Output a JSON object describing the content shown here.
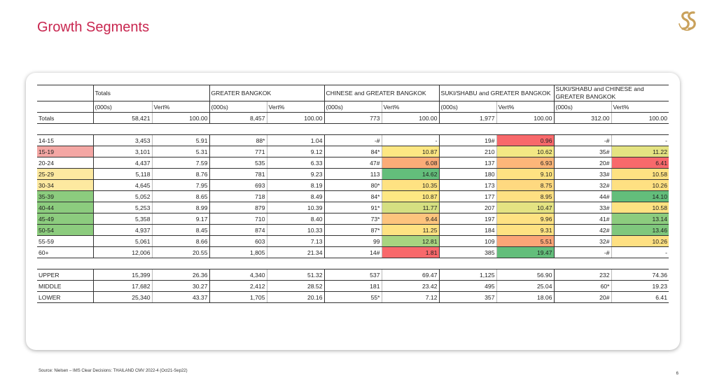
{
  "header": {
    "title": "Growth Segments"
  },
  "colors": {
    "title": "#c8264f",
    "logo": "#c9a15b"
  },
  "table": {
    "groups": [
      "Totals",
      "GREATER BANGKOK",
      "CHINESE and GREATER BANGKOK",
      "SUKI/SHABU and GREATER BANGKOK",
      "SUKI/SHABU and CHINESE and GREATER BANGKOK"
    ],
    "sub_headers": [
      "(000s)",
      "Vert%"
    ],
    "sections": [
      {
        "rows": [
          {
            "label": "Totals",
            "label_bg": "",
            "cells": [
              {
                "v": "58,421"
              },
              {
                "v": "100.00"
              },
              {
                "v": "8,457"
              },
              {
                "v": "100.00"
              },
              {
                "v": "773"
              },
              {
                "v": "100.00"
              },
              {
                "v": "1,977"
              },
              {
                "v": "100.00"
              },
              {
                "v": "312.00"
              },
              {
                "v": "100.00"
              }
            ]
          }
        ]
      },
      {
        "rows": [
          {
            "label": "14-15",
            "label_bg": "",
            "cells": [
              {
                "v": "3,453"
              },
              {
                "v": "5.91"
              },
              {
                "v": "88*"
              },
              {
                "v": "1.04"
              },
              {
                "v": "-#"
              },
              {
                "v": "-"
              },
              {
                "v": "19#"
              },
              {
                "v": "0.96",
                "bg": "#f8696b"
              },
              {
                "v": "-#"
              },
              {
                "v": "-"
              }
            ]
          },
          {
            "label": "15-19",
            "label_bg": "#f4a7a4",
            "cells": [
              {
                "v": "3,101"
              },
              {
                "v": "5.31"
              },
              {
                "v": "771"
              },
              {
                "v": "9.12"
              },
              {
                "v": "84*"
              },
              {
                "v": "10.87",
                "bg": "#fde783"
              },
              {
                "v": "210"
              },
              {
                "v": "10.62",
                "bg": "#f3e884"
              },
              {
                "v": "35#"
              },
              {
                "v": "11.22",
                "bg": "#e4e382"
              }
            ]
          },
          {
            "label": "20-24",
            "label_bg": "",
            "cells": [
              {
                "v": "4,437"
              },
              {
                "v": "7.59"
              },
              {
                "v": "535"
              },
              {
                "v": "6.33"
              },
              {
                "v": "47#"
              },
              {
                "v": "6.08",
                "bg": "#fbac78"
              },
              {
                "v": "137"
              },
              {
                "v": "6.93",
                "bg": "#fcb679"
              },
              {
                "v": "20#"
              },
              {
                "v": "6.41",
                "bg": "#f8696b"
              }
            ]
          },
          {
            "label": "25-29",
            "label_bg": "#fde9a0",
            "cells": [
              {
                "v": "5,118"
              },
              {
                "v": "8.76"
              },
              {
                "v": "781"
              },
              {
                "v": "9.23"
              },
              {
                "v": "113"
              },
              {
                "v": "14.62",
                "bg": "#63be7b"
              },
              {
                "v": "180"
              },
              {
                "v": "9.10",
                "bg": "#fee282"
              },
              {
                "v": "33#"
              },
              {
                "v": "10.58",
                "bg": "#fee282"
              }
            ]
          },
          {
            "label": "30-34",
            "label_bg": "#fde9a0",
            "cells": [
              {
                "v": "4,645"
              },
              {
                "v": "7.95"
              },
              {
                "v": "693"
              },
              {
                "v": "8.19"
              },
              {
                "v": "80*"
              },
              {
                "v": "10.35",
                "bg": "#fee282"
              },
              {
                "v": "173"
              },
              {
                "v": "8.75",
                "bg": "#fed980"
              },
              {
                "v": "32#"
              },
              {
                "v": "10.26",
                "bg": "#fee082"
              }
            ]
          },
          {
            "label": "35-39",
            "label_bg": "#8ccc7e",
            "cells": [
              {
                "v": "5,052"
              },
              {
                "v": "8.65"
              },
              {
                "v": "718"
              },
              {
                "v": "8.49"
              },
              {
                "v": "84*"
              },
              {
                "v": "10.87",
                "bg": "#fde783"
              },
              {
                "v": "177"
              },
              {
                "v": "8.95",
                "bg": "#fee082"
              },
              {
                "v": "44#"
              },
              {
                "v": "14.10",
                "bg": "#63be7b"
              }
            ]
          },
          {
            "label": "40-44",
            "label_bg": "#8ccc7e",
            "cells": [
              {
                "v": "5,253"
              },
              {
                "v": "8.99"
              },
              {
                "v": "879"
              },
              {
                "v": "10.39"
              },
              {
                "v": "91*"
              },
              {
                "v": "11.77",
                "bg": "#d5df81"
              },
              {
                "v": "207"
              },
              {
                "v": "10.47",
                "bg": "#e4e382"
              },
              {
                "v": "33#"
              },
              {
                "v": "10.58",
                "bg": "#fee282"
              }
            ]
          },
          {
            "label": "45-49",
            "label_bg": "#8ccc7e",
            "cells": [
              {
                "v": "5,358"
              },
              {
                "v": "9.17"
              },
              {
                "v": "710"
              },
              {
                "v": "8.40"
              },
              {
                "v": "73*"
              },
              {
                "v": "9.44",
                "bg": "#fdc47d"
              },
              {
                "v": "197"
              },
              {
                "v": "9.96",
                "bg": "#fee282"
              },
              {
                "v": "41#"
              },
              {
                "v": "13.14",
                "bg": "#8ccc7e"
              }
            ]
          },
          {
            "label": "50-54",
            "label_bg": "#8ccc7e",
            "cells": [
              {
                "v": "4,937"
              },
              {
                "v": "8.45"
              },
              {
                "v": "874"
              },
              {
                "v": "10.33"
              },
              {
                "v": "87*"
              },
              {
                "v": "11.25",
                "bg": "#fee282"
              },
              {
                "v": "184"
              },
              {
                "v": "9.31",
                "bg": "#fee282"
              },
              {
                "v": "42#"
              },
              {
                "v": "13.46",
                "bg": "#7fc77d"
              }
            ]
          },
          {
            "label": "55-59",
            "label_bg": "",
            "cells": [
              {
                "v": "5,061"
              },
              {
                "v": "8.66"
              },
              {
                "v": "603"
              },
              {
                "v": "7.13"
              },
              {
                "v": "99"
              },
              {
                "v": "12.81",
                "bg": "#a8d480"
              },
              {
                "v": "109"
              },
              {
                "v": "5.51",
                "bg": "#fba577"
              },
              {
                "v": "32#"
              },
              {
                "v": "10.26",
                "bg": "#fee082"
              }
            ]
          },
          {
            "label": "60+",
            "label_bg": "",
            "cells": [
              {
                "v": "12,006"
              },
              {
                "v": "20.55"
              },
              {
                "v": "1,805"
              },
              {
                "v": "21.34"
              },
              {
                "v": "14#"
              },
              {
                "v": "1.81",
                "bg": "#f8696b"
              },
              {
                "v": "385"
              },
              {
                "v": "19.47",
                "bg": "#63be7b"
              },
              {
                "v": "-#"
              },
              {
                "v": "-"
              }
            ]
          }
        ]
      },
      {
        "rows": [
          {
            "label": "UPPER",
            "label_bg": "",
            "cells": [
              {
                "v": "15,399"
              },
              {
                "v": "26.36"
              },
              {
                "v": "4,340"
              },
              {
                "v": "51.32"
              },
              {
                "v": "537"
              },
              {
                "v": "69.47"
              },
              {
                "v": "1,125"
              },
              {
                "v": "56.90"
              },
              {
                "v": "232"
              },
              {
                "v": "74.36"
              }
            ]
          },
          {
            "label": "MIDDLE",
            "label_bg": "",
            "cells": [
              {
                "v": "17,682"
              },
              {
                "v": "30.27"
              },
              {
                "v": "2,412"
              },
              {
                "v": "28.52"
              },
              {
                "v": "181"
              },
              {
                "v": "23.42"
              },
              {
                "v": "495"
              },
              {
                "v": "25.04"
              },
              {
                "v": "60*"
              },
              {
                "v": "19.23"
              }
            ]
          },
          {
            "label": "LOWER",
            "label_bg": "",
            "cells": [
              {
                "v": "25,340"
              },
              {
                "v": "43.37"
              },
              {
                "v": "1,705"
              },
              {
                "v": "20.16"
              },
              {
                "v": "55*"
              },
              {
                "v": "7.12"
              },
              {
                "v": "357"
              },
              {
                "v": "18.06"
              },
              {
                "v": "20#"
              },
              {
                "v": "6.41"
              }
            ]
          }
        ]
      }
    ]
  },
  "footer": {
    "source": "Source: Nielsen – IMS Clear Decisions: THAILAND CMV 2022-4 (Oct21-Sep22)",
    "page_number": "6"
  }
}
